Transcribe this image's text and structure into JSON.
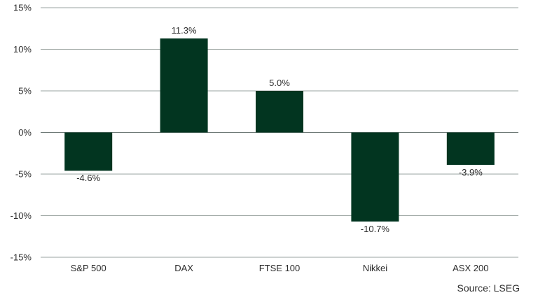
{
  "chart_data": {
    "type": "bar",
    "categories": [
      "S&P 500",
      "DAX",
      "FTSE 100",
      "Nikkei",
      "ASX 200"
    ],
    "values": [
      -4.6,
      11.3,
      5.0,
      -10.7,
      -3.9
    ],
    "data_labels": [
      "-4.6%",
      "11.3%",
      "5.0%",
      "-10.7%",
      "-3.9%"
    ],
    "ylim": [
      -15,
      15
    ],
    "yticks": [
      15,
      10,
      5,
      0,
      -5,
      -10,
      -15
    ],
    "ytick_labels": [
      "15%",
      "10%",
      "5%",
      "0%",
      "-5%",
      "-10%",
      "-15%"
    ],
    "grid": true,
    "bar_color": "#023520",
    "title": "",
    "xlabel": "",
    "ylabel": ""
  },
  "source": "Source: LSEG"
}
